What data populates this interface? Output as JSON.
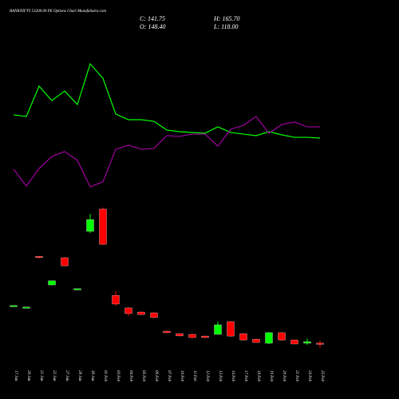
{
  "chart_data": {
    "type": "candlestick",
    "title": "BANKNIFTY 53200.00 PE Options Chart MunafaSutra.com",
    "ohlc_labels": {
      "close": "C: 141.75",
      "high": "H: 165.70",
      "open": "O: 148.40",
      "low": "L: 118.00"
    },
    "categories": [
      "17 Jan",
      "20 Jan",
      "21 Jan",
      "22 Jan",
      "27 Jan",
      "28 Jan",
      "30 Jan",
      "01 Feb",
      "03 Feb",
      "04 Feb",
      "05 Feb",
      "06 Feb",
      "07 Feb",
      "10 Feb",
      "11 Feb",
      "12 Feb",
      "13 Feb",
      "14 Feb",
      "17 Feb",
      "18 Feb",
      "19 Feb",
      "20 Feb",
      "21 Feb",
      "24 Feb",
      "25 Feb"
    ],
    "open": [
      394,
      384,
      720,
      532,
      711,
      505,
      885,
      1032,
      463,
      380,
      353,
      348,
      227,
      211,
      206,
      195,
      206,
      290,
      211,
      174,
      148,
      217,
      169,
      148,
      148.4
    ],
    "high": [
      397,
      387,
      724,
      561,
      716,
      508,
      1000,
      1042,
      490,
      385,
      358,
      353,
      230,
      214,
      209,
      198,
      290,
      295,
      214,
      177,
      222,
      220,
      172,
      179,
      165.7
    ],
    "low": [
      393,
      383,
      708,
      530,
      655,
      504,
      874,
      795,
      395,
      327,
      332,
      312,
      214,
      193,
      182,
      182,
      206,
      190,
      164,
      150,
      143,
      164,
      140,
      138,
      118.0
    ],
    "close": [
      396,
      386,
      712,
      559,
      658,
      507,
      963,
      800,
      406,
      343,
      337,
      317,
      217,
      196,
      185,
      185,
      269,
      195,
      169,
      153,
      217,
      169,
      143,
      158,
      141.75
    ],
    "up_color": "#00ff00",
    "down_color": "#ff0000",
    "series": [
      {
        "color": "#00ff00",
        "values": [
          1653,
          1642,
          1842,
          1747,
          1810,
          1721,
          1989,
          1894,
          1658,
          1621,
          1621,
          1610,
          1553,
          1542,
          1537,
          1532,
          1574,
          1537,
          1526,
          1516,
          1542,
          1521,
          1505,
          1505,
          1500
        ]
      },
      {
        "color": "#a000a0",
        "values": [
          1295,
          1184,
          1300,
          1379,
          1411,
          1353,
          1179,
          1211,
          1426,
          1453,
          1426,
          1432,
          1516,
          1511,
          1526,
          1526,
          1447,
          1558,
          1584,
          1642,
          1532,
          1589,
          1605,
          1574,
          1574
        ]
      }
    ],
    "ylim": [
      -220,
      2410
    ]
  }
}
